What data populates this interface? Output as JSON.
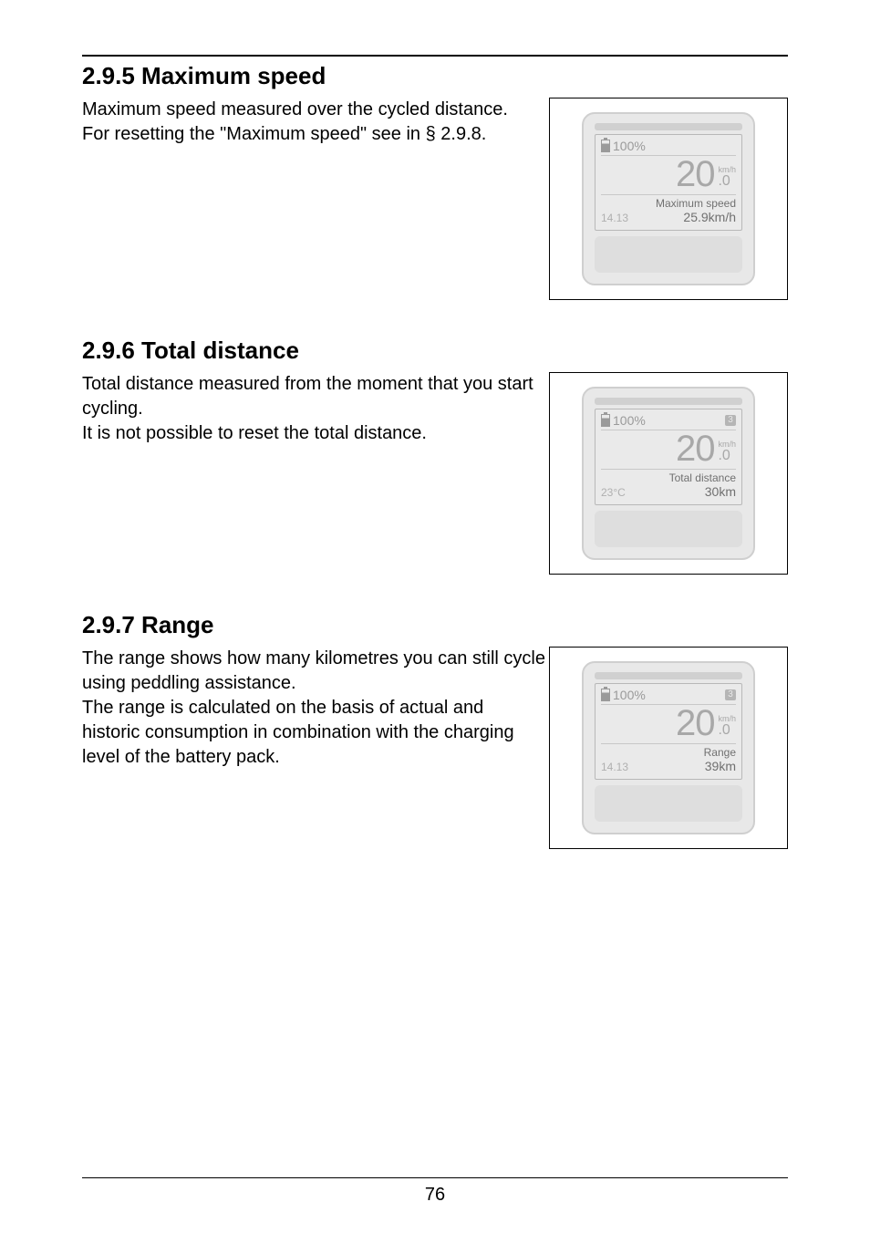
{
  "page_number": "76",
  "sections": [
    {
      "heading": "2.9.5  Maximum speed",
      "body": "Maximum speed measured over the cycled distance.\nFor resetting the \"Maximum speed\" see in § 2.9.8.",
      "device": {
        "battery_pct": "100%",
        "assist_level": "",
        "speed_big": "20",
        "speed_unit": "km/h",
        "speed_dec": ".0",
        "label": "Maximum speed",
        "foot_left": "14.13",
        "foot_right": "25.9km/h"
      }
    },
    {
      "heading": "2.9.6  Total distance",
      "body": "Total distance measured from the moment that you start cycling.\nIt is not possible to reset the total distance.",
      "device": {
        "battery_pct": "100%",
        "assist_level": "3",
        "speed_big": "20",
        "speed_unit": "km/h",
        "speed_dec": ".0",
        "label": "Total distance",
        "foot_left": "23°C",
        "foot_right": "30km"
      }
    },
    {
      "heading": "2.9.7  Range",
      "body": "The range shows how many kilometres you can still cycle using peddling assistance.\nThe range is calculated on the basis of actual and historic consumption in combination with the charging level of the battery pack.",
      "device": {
        "battery_pct": "100%",
        "assist_level": "3",
        "speed_big": "20",
        "speed_unit": "km/h",
        "speed_dec": ".0",
        "label": "Range",
        "foot_left": "14.13",
        "foot_right": "39km"
      }
    }
  ]
}
